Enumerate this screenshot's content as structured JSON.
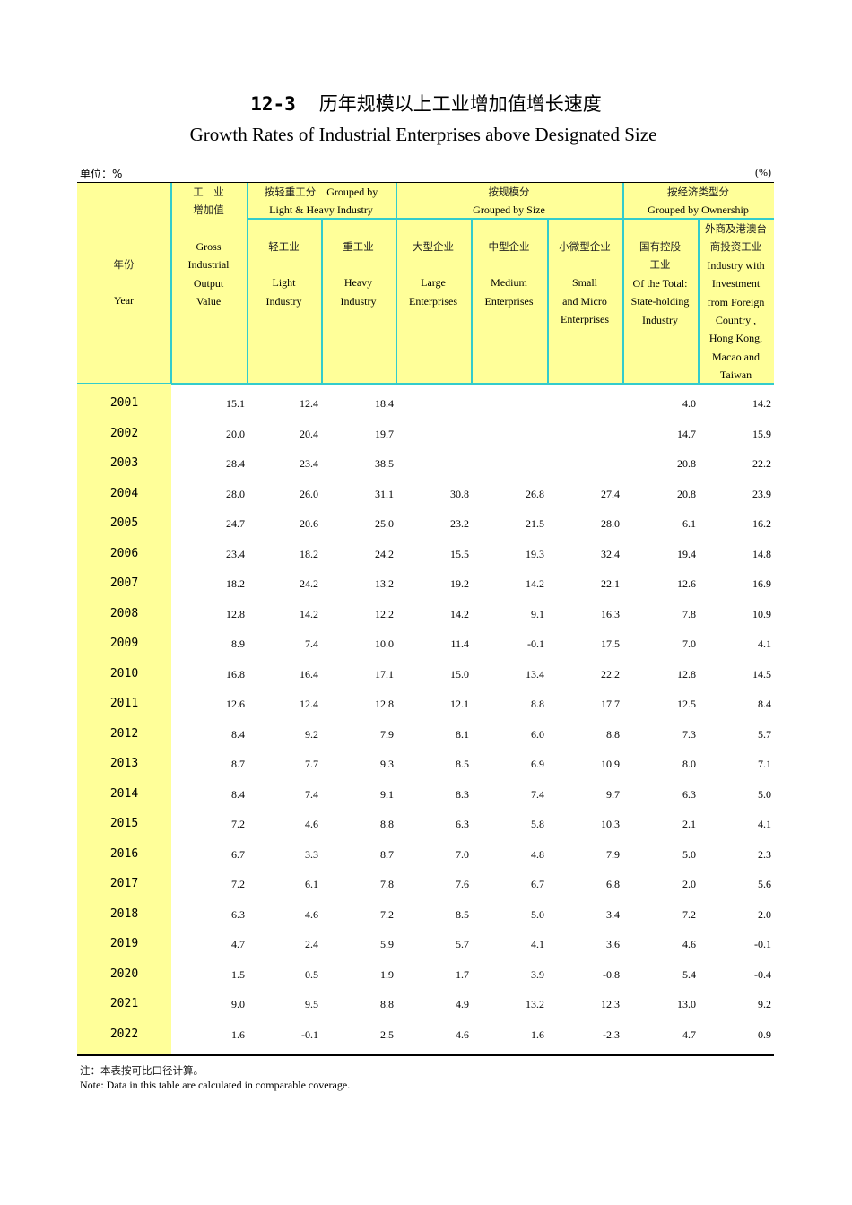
{
  "title": {
    "number": "12-3",
    "cn": "历年规模以上工业增加值增长速度",
    "en": "Growth Rates of Industrial Enterprises above Designated Size"
  },
  "unit_label": "单位：%",
  "unit_right": "(%)",
  "header": {
    "year": {
      "cn": "年份",
      "en": "Year"
    },
    "gross": {
      "cn1": "工　业",
      "cn2": "增加值",
      "en": [
        "Gross",
        "Industrial",
        "Output",
        "Value"
      ]
    },
    "group_lh": {
      "cn": "按轻重工分",
      "en1": "Grouped by",
      "en2": "Light & Heavy Industry"
    },
    "group_size": {
      "cn": "按规模分",
      "en": "Grouped by Size"
    },
    "group_own": {
      "cn": "按经济类型分",
      "en": "Grouped by Ownership"
    },
    "light": {
      "cn": "轻工业",
      "en": [
        "Light",
        "Industry"
      ]
    },
    "heavy": {
      "cn": "重工业",
      "en": [
        "Heavy",
        "Industry"
      ]
    },
    "large": {
      "cn": "大型企业",
      "en": [
        "Large",
        "Enterprises"
      ]
    },
    "medium": {
      "cn": "中型企业",
      "en": [
        "Medium",
        "Enterprises"
      ]
    },
    "small": {
      "cn": "小微型企业",
      "en": [
        "Small",
        "and Micro",
        "Enterprises"
      ]
    },
    "state": {
      "cn": [
        "国有控股",
        "工业"
      ],
      "en": [
        "Of the Total:",
        "State-holding",
        "Industry"
      ]
    },
    "foreign": {
      "cn": [
        "外商及港澳台",
        "商投资工业"
      ],
      "en": [
        "Industry with",
        "Investment",
        "from Foreign",
        "Country ,",
        "Hong Kong,",
        "Macao and",
        "Taiwan"
      ]
    }
  },
  "rows": [
    {
      "year": "2001",
      "v": [
        "15.1",
        "12.4",
        "18.4",
        "",
        "",
        "",
        "4.0",
        "14.2"
      ]
    },
    {
      "year": "2002",
      "v": [
        "20.0",
        "20.4",
        "19.7",
        "",
        "",
        "",
        "14.7",
        "15.9"
      ]
    },
    {
      "year": "2003",
      "v": [
        "28.4",
        "23.4",
        "38.5",
        "",
        "",
        "",
        "20.8",
        "22.2"
      ]
    },
    {
      "year": "2004",
      "v": [
        "28.0",
        "26.0",
        "31.1",
        "30.8",
        "26.8",
        "27.4",
        "20.8",
        "23.9"
      ]
    },
    {
      "year": "2005",
      "v": [
        "24.7",
        "20.6",
        "25.0",
        "23.2",
        "21.5",
        "28.0",
        "6.1",
        "16.2"
      ]
    },
    {
      "year": "2006",
      "v": [
        "23.4",
        "18.2",
        "24.2",
        "15.5",
        "19.3",
        "32.4",
        "19.4",
        "14.8"
      ]
    },
    {
      "year": "2007",
      "v": [
        "18.2",
        "24.2",
        "13.2",
        "19.2",
        "14.2",
        "22.1",
        "12.6",
        "16.9"
      ]
    },
    {
      "year": "2008",
      "v": [
        "12.8",
        "14.2",
        "12.2",
        "14.2",
        "9.1",
        "16.3",
        "7.8",
        "10.9"
      ]
    },
    {
      "year": "2009",
      "v": [
        "8.9",
        "7.4",
        "10.0",
        "11.4",
        "-0.1",
        "17.5",
        "7.0",
        "4.1"
      ]
    },
    {
      "year": "2010",
      "v": [
        "16.8",
        "16.4",
        "17.1",
        "15.0",
        "13.4",
        "22.2",
        "12.8",
        "14.5"
      ]
    },
    {
      "year": "2011",
      "v": [
        "12.6",
        "12.4",
        "12.8",
        "12.1",
        "8.8",
        "17.7",
        "12.5",
        "8.4"
      ]
    },
    {
      "year": "2012",
      "v": [
        "8.4",
        "9.2",
        "7.9",
        "8.1",
        "6.0",
        "8.8",
        "7.3",
        "5.7"
      ]
    },
    {
      "year": "2013",
      "v": [
        "8.7",
        "7.7",
        "9.3",
        "8.5",
        "6.9",
        "10.9",
        "8.0",
        "7.1"
      ]
    },
    {
      "year": "2014",
      "v": [
        "8.4",
        "7.4",
        "9.1",
        "8.3",
        "7.4",
        "9.7",
        "6.3",
        "5.0"
      ]
    },
    {
      "year": "2015",
      "v": [
        "7.2",
        "4.6",
        "8.8",
        "6.3",
        "5.8",
        "10.3",
        "2.1",
        "4.1"
      ]
    },
    {
      "year": "2016",
      "v": [
        "6.7",
        "3.3",
        "8.7",
        "7.0",
        "4.8",
        "7.9",
        "5.0",
        "2.3"
      ]
    },
    {
      "year": "2017",
      "v": [
        "7.2",
        "6.1",
        "7.8",
        "7.6",
        "6.7",
        "6.8",
        "2.0",
        "5.6"
      ]
    },
    {
      "year": "2018",
      "v": [
        "6.3",
        "4.6",
        "7.2",
        "8.5",
        "5.0",
        "3.4",
        "7.2",
        "2.0"
      ]
    },
    {
      "year": "2019",
      "v": [
        "4.7",
        "2.4",
        "5.9",
        "5.7",
        "4.1",
        "3.6",
        "4.6",
        "-0.1"
      ]
    },
    {
      "year": "2020",
      "v": [
        "1.5",
        "0.5",
        "1.9",
        "1.7",
        "3.9",
        "-0.8",
        "5.4",
        "-0.4"
      ]
    },
    {
      "year": "2021",
      "v": [
        "9.0",
        "9.5",
        "8.8",
        "4.9",
        "13.2",
        "12.3",
        "13.0",
        "9.2"
      ]
    },
    {
      "year": "2022",
      "v": [
        "1.6",
        "-0.1",
        "2.5",
        "4.6",
        "1.6",
        "-2.3",
        "4.7",
        "0.9"
      ]
    }
  ],
  "notes": {
    "cn": "注：本表按可比口径计算。",
    "en": "Note: Data in this table are calculated in comparable coverage."
  },
  "colors": {
    "header_bg": "#ffff99",
    "grid": "#33cccc"
  }
}
